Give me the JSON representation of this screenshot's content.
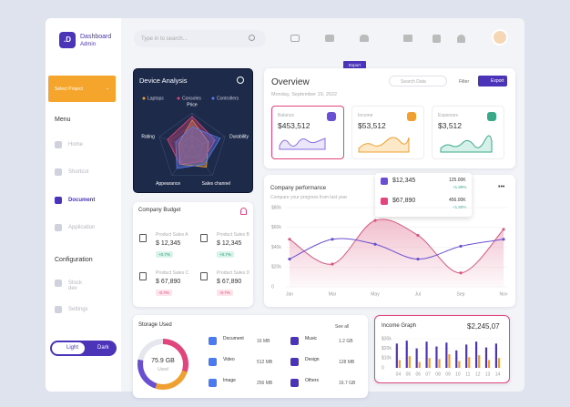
{
  "sidebar": {
    "logo": ".D",
    "brand": "Dashboard",
    "role": "Admin",
    "select": "Select Project",
    "menu_title": "Menu",
    "menu": [
      "Home",
      "Shortcut",
      "Document",
      "Application"
    ],
    "config_title": "Configuration",
    "config": [
      "Stock dev",
      "Settings"
    ],
    "theme": [
      "Light",
      "Dark"
    ]
  },
  "topbar": {
    "search": "Type in to search..."
  },
  "device": {
    "title": "Device Analysis",
    "axes": [
      "Price",
      "Durability",
      "Sales channel",
      "Appearance",
      "Rating"
    ],
    "max": 100,
    "series": [
      {
        "name": "Laptops",
        "color": "#f0a030",
        "values": [
          80,
          50,
          70,
          60,
          40
        ]
      },
      {
        "name": "Consoles",
        "color": "#e0457b",
        "values": [
          90,
          70,
          50,
          60,
          75
        ]
      },
      {
        "name": "Controllers",
        "color": "#5b7bf0",
        "values": [
          60,
          85,
          60,
          75,
          50
        ]
      }
    ]
  },
  "overview": {
    "tag": "Export",
    "title": "Overview",
    "date": "Monday, September 19, 2022",
    "search": "Search Data",
    "filter": "Filter",
    "export": "Export",
    "cards": [
      {
        "label": "Balance",
        "value": "$453,512"
      },
      {
        "label": "Income",
        "value": "$53,512"
      },
      {
        "label": "Expenses",
        "value": "$3,512"
      }
    ]
  },
  "performance": {
    "title": "Company performance",
    "subtitle": "Compare your progress from last year",
    "categories": [
      "Jan",
      "Mar",
      "May",
      "Jul",
      "Sep",
      "Nov"
    ],
    "ylim": [
      0,
      80
    ],
    "yticks": [
      0,
      {
        "value": 20,
        "label": "$20k"
      },
      {
        "value": 40,
        "label": "$40k"
      },
      {
        "value": 60,
        "label": "$60k"
      },
      {
        "value": 80,
        "label": "$80k"
      }
    ],
    "series": [
      {
        "color": "#d9587f",
        "values": [
          48,
          23,
          67,
          52,
          14,
          58
        ]
      },
      {
        "color": "#6a4fd0",
        "values": [
          28,
          48,
          43,
          28,
          41,
          48
        ]
      }
    ],
    "tooltip": [
      {
        "value": "$12,345",
        "amount": "125.00K",
        "change": "+1.89%"
      },
      {
        "value": "$67,890",
        "amount": "456.00K",
        "change": "+1.89%"
      }
    ]
  },
  "budget": {
    "title": "Company Budget",
    "items": [
      {
        "name": "Product Sales A",
        "value": "$ 12,345",
        "change": "+0.7%"
      },
      {
        "name": "Product Sales B",
        "value": "$ 12,345",
        "change": "+0.7%"
      },
      {
        "name": "Product Sales C",
        "value": "$ 67,890",
        "change": "-0.7%"
      },
      {
        "name": "Product Sales D",
        "value": "$ 67,890",
        "change": "-0.7%"
      }
    ]
  },
  "storage": {
    "title": "Storage Used",
    "see_all": "See all",
    "used": "75.9 GB",
    "used_label": "Used",
    "items": [
      {
        "name": "Document",
        "size": "16 MB"
      },
      {
        "name": "Video",
        "size": "512 MB"
      },
      {
        "name": "Image",
        "size": "256 MB"
      },
      {
        "name": "Music",
        "size": "1.2 GB"
      },
      {
        "name": "Design",
        "size": "128 MB"
      },
      {
        "name": "Others",
        "size": "16.7 GB"
      }
    ]
  },
  "income": {
    "title": "Income Graph",
    "total": "$2,245,07",
    "categories": [
      "04",
      "05",
      "06",
      "07",
      "08",
      "09",
      "10",
      "11",
      "12",
      "13",
      "14"
    ],
    "ylim": [
      0,
      30
    ],
    "yticks": [
      0,
      {
        "value": 10,
        "label": "$10k"
      },
      {
        "value": 20,
        "label": "$20k"
      },
      {
        "value": 30,
        "label": "$30k"
      }
    ],
    "series": [
      {
        "color": "#4b34b8",
        "values": [
          25,
          28,
          20,
          27,
          22,
          26,
          18,
          24,
          27,
          21,
          25
        ]
      },
      {
        "color": "#f0a030",
        "values": [
          8,
          12,
          6,
          10,
          9,
          14,
          7,
          11,
          13,
          8,
          10
        ]
      }
    ]
  }
}
